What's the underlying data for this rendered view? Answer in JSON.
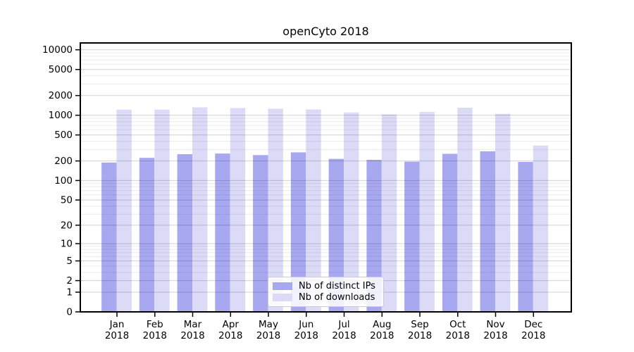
{
  "chart_data": {
    "type": "bar",
    "title": "openCyto 2018",
    "x_year": "2018",
    "categories": [
      "Jan",
      "Feb",
      "Mar",
      "Apr",
      "May",
      "Jun",
      "Jul",
      "Aug",
      "Sep",
      "Oct",
      "Nov",
      "Dec"
    ],
    "series": [
      {
        "name": "Nb of distinct IPs",
        "color": "#a8a8f0",
        "values": [
          189,
          223,
          254,
          260,
          246,
          271,
          215,
          208,
          195,
          257,
          281,
          193
        ]
      },
      {
        "name": "Nb of downloads",
        "color": "#dbdbf8",
        "values": [
          1218,
          1218,
          1322,
          1291,
          1258,
          1227,
          1103,
          1032,
          1122,
          1302,
          1051,
          344
        ]
      }
    ],
    "yaxis": {
      "scale": "log1p",
      "ticks": [
        0,
        1,
        2,
        5,
        10,
        20,
        50,
        100,
        200,
        500,
        1000,
        2000,
        5000,
        10000
      ],
      "ylim": [
        0,
        12700
      ]
    },
    "xlabel": "",
    "ylabel": "",
    "grid": true,
    "legend_position": "lower-center-inside"
  }
}
